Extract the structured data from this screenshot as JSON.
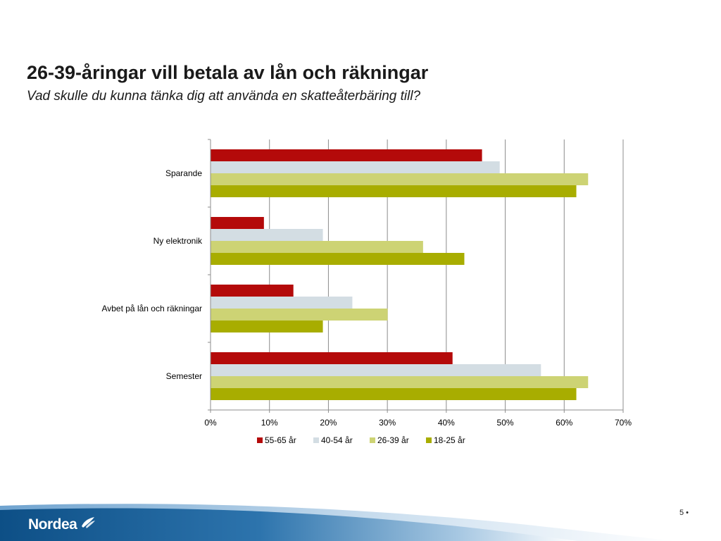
{
  "slide": {
    "title": "26-39-åringar vill betala av lån och räkningar",
    "subtitle": "Vad skulle du kunna tänka dig att använda en skatteåterbäring till?",
    "page_number": "5 •",
    "logo_text": "Nordea"
  },
  "chart_data": {
    "type": "bar",
    "orientation": "horizontal",
    "categories": [
      "Sparande",
      "Ny elektronik",
      "Avbet på lån och räkningar",
      "Semester"
    ],
    "series": [
      {
        "name": "55-65 år",
        "color": "#b40a0a",
        "values": [
          46,
          9,
          14,
          41
        ]
      },
      {
        "name": "40-54 år",
        "color": "#d3dde3",
        "values": [
          49,
          19,
          24,
          56
        ]
      },
      {
        "name": "26-39 år",
        "color": "#cdd374",
        "values": [
          64,
          36,
          30,
          64
        ]
      },
      {
        "name": "18-25 år",
        "color": "#a8ad00",
        "values": [
          62,
          43,
          19,
          62
        ]
      }
    ],
    "xlim": [
      0,
      70
    ],
    "ticks": [
      "0%",
      "10%",
      "20%",
      "30%",
      "40%",
      "50%",
      "60%",
      "70%"
    ],
    "grid": true,
    "legend_position": "bottom"
  }
}
